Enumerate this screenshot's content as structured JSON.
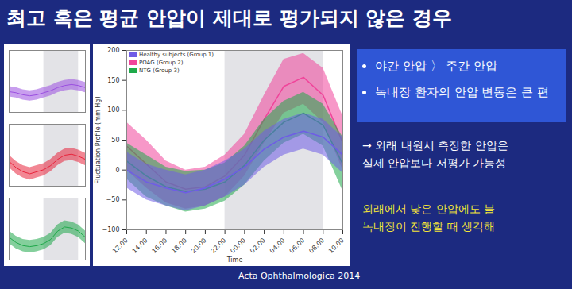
{
  "slide": {
    "title": "최고 혹은 평균 안압이 제대로 평가되지 않은 경우",
    "bullets": [
      "야간 안압 〉 주간 안압",
      "녹내장 환자의 안압 변동은 큰 편"
    ],
    "note": [
      "→ 외래 내원시 측정한 안압은",
      "실제 안압보다 저평가 가능성"
    ],
    "highlight": [
      "외래에서 낮은 안압에도 불",
      "녹내장이 진행할 때 생각해"
    ],
    "source": "Acta Ophthalmologica 2014"
  },
  "chart_data": [
    {
      "type": "line",
      "x_label": "Time",
      "y_label": "Fluctuation Profile (mm Hg)",
      "categories": [
        "12:00",
        "14:00",
        "16:00",
        "18:00",
        "20:00",
        "22:00",
        "00:00",
        "02:00",
        "04:00",
        "06:00",
        "08:00",
        "10:00"
      ],
      "shaded_x": [
        "22:00",
        "08:00"
      ],
      "ylim": [
        -100,
        200
      ],
      "yticks": [
        -100,
        -50,
        0,
        50,
        100,
        150,
        200
      ],
      "grid": false,
      "legend": "top-left",
      "series": [
        {
          "name": "Healthy subjects (Group 1)",
          "color": "#6f5ce6",
          "values": [
            0,
            -20,
            -30,
            -38,
            -30,
            -15,
            5,
            35,
            55,
            65,
            55,
            25
          ],
          "lower": [
            -30,
            -50,
            -60,
            -68,
            -60,
            -45,
            -25,
            5,
            25,
            35,
            25,
            -5
          ],
          "upper": [
            30,
            10,
            0,
            -8,
            0,
            15,
            35,
            65,
            85,
            95,
            85,
            55
          ]
        },
        {
          "name": "POAG (Group 2)",
          "color": "#f0449a",
          "values": [
            40,
            10,
            -20,
            -32,
            -28,
            -10,
            25,
            85,
            140,
            155,
            125,
            45
          ],
          "lower": [
            0,
            -30,
            -55,
            -65,
            -60,
            -45,
            -10,
            45,
            95,
            110,
            80,
            0
          ],
          "upper": [
            80,
            50,
            15,
            0,
            5,
            25,
            60,
            125,
            185,
            195,
            170,
            90
          ]
        },
        {
          "name": "NTG (Group 3)",
          "color": "#1faa4a",
          "values": [
            15,
            -10,
            -28,
            -36,
            -32,
            -20,
            8,
            50,
            80,
            95,
            75,
            10
          ],
          "lower": [
            -15,
            -45,
            -60,
            -70,
            -65,
            -52,
            -25,
            15,
            45,
            60,
            40,
            -35
          ],
          "upper": [
            45,
            25,
            5,
            -2,
            0,
            12,
            40,
            85,
            115,
            130,
            110,
            55
          ]
        }
      ]
    },
    {
      "type": "line",
      "tick_labels": false,
      "categories": [
        "12:00",
        "14:00",
        "16:00",
        "18:00",
        "20:00",
        "22:00",
        "00:00",
        "02:00",
        "04:00",
        "06:00",
        "08:00",
        "10:00"
      ],
      "shaded_x": [
        "22:00",
        "08:00"
      ],
      "ylim": [
        -100,
        200
      ],
      "series": [
        {
          "color": "#9b4fe0",
          "values": [
            0,
            -5,
            -15,
            -20,
            -15,
            -5,
            5,
            20,
            30,
            35,
            30,
            20
          ],
          "lower": [
            -25,
            -30,
            -40,
            -45,
            -40,
            -30,
            -20,
            -5,
            5,
            10,
            5,
            -5
          ],
          "upper": [
            25,
            20,
            10,
            5,
            10,
            20,
            30,
            45,
            55,
            60,
            55,
            45
          ]
        }
      ]
    },
    {
      "type": "line",
      "tick_labels": false,
      "categories": [
        "12:00",
        "14:00",
        "16:00",
        "18:00",
        "20:00",
        "22:00",
        "00:00",
        "02:00",
        "04:00",
        "06:00",
        "08:00",
        "10:00"
      ],
      "shaded_x": [
        "22:00",
        "08:00"
      ],
      "ylim": [
        -100,
        200
      ],
      "series": [
        {
          "color": "#e8243c",
          "values": [
            20,
            -10,
            -30,
            -40,
            -30,
            -20,
            0,
            30,
            50,
            55,
            45,
            30
          ],
          "lower": [
            -10,
            -40,
            -60,
            -70,
            -60,
            -50,
            -30,
            0,
            20,
            25,
            15,
            0
          ],
          "upper": [
            50,
            20,
            0,
            -10,
            0,
            10,
            30,
            60,
            80,
            85,
            75,
            60
          ]
        }
      ]
    },
    {
      "type": "line",
      "tick_labels": false,
      "categories": [
        "12:00",
        "14:00",
        "16:00",
        "18:00",
        "20:00",
        "22:00",
        "00:00",
        "02:00",
        "04:00",
        "06:00",
        "08:00",
        "10:00"
      ],
      "shaded_x": [
        "22:00",
        "08:00"
      ],
      "ylim": [
        -100,
        200
      ],
      "series": [
        {
          "color": "#1fa84a",
          "values": [
            10,
            -15,
            -30,
            -35,
            -30,
            -20,
            0,
            40,
            60,
            55,
            40,
            10
          ],
          "lower": [
            -20,
            -45,
            -60,
            -65,
            -60,
            -50,
            -30,
            10,
            30,
            25,
            10,
            -20
          ],
          "upper": [
            40,
            15,
            0,
            -5,
            0,
            10,
            30,
            70,
            90,
            85,
            70,
            40
          ]
        }
      ]
    }
  ]
}
